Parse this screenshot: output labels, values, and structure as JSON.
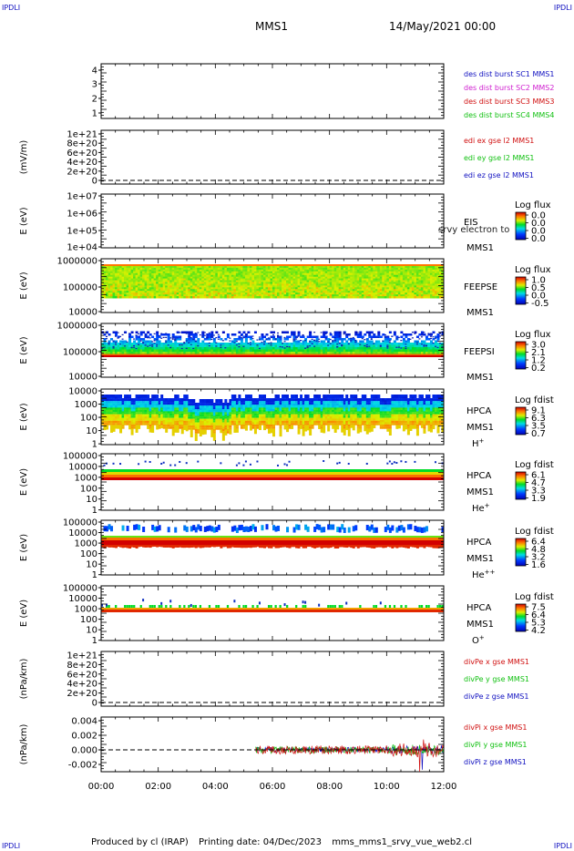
{
  "corner_label": "IPDLI",
  "header": {
    "mission": "MMS1",
    "date": "14/May/2021 00:00"
  },
  "footer": {
    "producer": "Produced by cl (IRAP)",
    "printing_date": "Printing date: 04/Dec/2023",
    "script": "mms_mms1_srvy_vue_web2.cl"
  },
  "x_axis": {
    "ticks": [
      "00:00",
      "02:00",
      "04:00",
      "06:00",
      "08:00",
      "10:00",
      "12:00"
    ]
  },
  "colors": {
    "blue": "#1010c0",
    "magenta": "#d020d0",
    "red": "#d01010",
    "green": "#10c010"
  },
  "chart_data": [
    {
      "type": "line",
      "yticks": [
        "4",
        "3",
        "2",
        "1"
      ],
      "legend": [
        {
          "text": "des dist burst SC1 MMS1",
          "color": "#1010c0"
        },
        {
          "text": "des dist burst SC2 MMS2",
          "color": "#d020d0"
        },
        {
          "text": "des dist burst SC3 MMS3",
          "color": "#d01010"
        },
        {
          "text": "des dist burst SC4 MMS4",
          "color": "#10c010"
        }
      ]
    },
    {
      "type": "line",
      "ylabel": "(mV/m)",
      "yticks": [
        "1e+21",
        "8e+20",
        "6e+20",
        "4e+20",
        "2e+20",
        "0"
      ],
      "legend": [
        {
          "text": "edi ex gse l2 MMS1",
          "color": "#d01010"
        },
        {
          "text": "edi ey gse l2 MMS1",
          "color": "#10c010"
        },
        {
          "text": "edi ez gse l2 MMS1",
          "color": "#1010c0"
        }
      ]
    },
    {
      "type": "heatmap",
      "ylabel": "E (eV)",
      "yticks": [
        "1e+07",
        "1e+06",
        "1e+05",
        "1e+04"
      ],
      "side": [
        "EIS",
        "MMS1"
      ],
      "overlay": "srvy electron to",
      "cbar_title": "Log flux",
      "cbar_ticks": [
        "0.0",
        "0.0",
        "0.0",
        "0.0"
      ]
    },
    {
      "type": "heatmap",
      "ylabel": "E (eV)",
      "yticks": [
        "1000000",
        "100000",
        "10000"
      ],
      "side": [
        "FEEPSE",
        "MMS1"
      ],
      "cbar_title": "Log flux",
      "cbar_ticks": [
        "1.0",
        "0.5",
        "0.0",
        "-0.5"
      ]
    },
    {
      "type": "heatmap",
      "ylabel": "E (eV)",
      "yticks": [
        "1000000",
        "100000",
        "10000"
      ],
      "side": [
        "FEEPSI",
        "MMS1"
      ],
      "cbar_title": "Log flux",
      "cbar_ticks": [
        "3.0",
        "2.1",
        "1.2",
        "0.2"
      ]
    },
    {
      "type": "heatmap",
      "ylabel": "E (eV)",
      "yticks": [
        "10000",
        "1000",
        "100",
        "10",
        "1"
      ],
      "side": [
        "HPCA",
        "MMS1"
      ],
      "species": "H",
      "species_sup": "+",
      "cbar_title": "Log fdist",
      "cbar_ticks": [
        "9.1",
        "6.3",
        "3.5",
        "0.7"
      ]
    },
    {
      "type": "heatmap",
      "ylabel": "E (eV)",
      "yticks": [
        "100000",
        "10000",
        "1000",
        "100",
        "10",
        "1"
      ],
      "side": [
        "HPCA",
        "MMS1"
      ],
      "species": "He",
      "species_sup": "+",
      "cbar_title": "Log fdist",
      "cbar_ticks": [
        "6.1",
        "4.7",
        "3.3",
        "1.9"
      ]
    },
    {
      "type": "heatmap",
      "ylabel": "E (eV)",
      "yticks": [
        "100000",
        "10000",
        "1000",
        "100",
        "10",
        "1"
      ],
      "side": [
        "HPCA",
        "MMS1"
      ],
      "species": "He",
      "species_sup": "++",
      "cbar_title": "Log fdist",
      "cbar_ticks": [
        "6.4",
        "4.8",
        "3.2",
        "1.6"
      ]
    },
    {
      "type": "heatmap",
      "ylabel": "E (eV)",
      "yticks": [
        "100000",
        "10000",
        "1000",
        "100",
        "10",
        "1"
      ],
      "side": [
        "HPCA",
        "MMS1"
      ],
      "species": "O",
      "species_sup": "+",
      "cbar_title": "Log fdist",
      "cbar_ticks": [
        "7.5",
        "6.4",
        "5.3",
        "4.2"
      ]
    },
    {
      "type": "line",
      "ylabel": "(nPa/km)",
      "yticks": [
        "1e+21",
        "8e+20",
        "6e+20",
        "4e+20",
        "2e+20",
        "0"
      ],
      "legend": [
        {
          "text": "divPe x gse MMS1",
          "color": "#d01010"
        },
        {
          "text": "divPe y gse MMS1",
          "color": "#10c010"
        },
        {
          "text": "divPe z gse MMS1",
          "color": "#1010c0"
        }
      ]
    },
    {
      "type": "line",
      "ylabel": "(nPa/km)",
      "yticks": [
        "0.004",
        "0.002",
        "0.000",
        "-0.002"
      ],
      "legend": [
        {
          "text": "divPi x gse MMS1",
          "color": "#d01010"
        },
        {
          "text": "divPi y gse MMS1",
          "color": "#10c010"
        },
        {
          "text": "divPi z gse MMS1",
          "color": "#1010c0"
        }
      ],
      "data_start": "05:25",
      "data_end": "12:00",
      "ylim": [
        -0.003,
        0.0045
      ]
    }
  ]
}
